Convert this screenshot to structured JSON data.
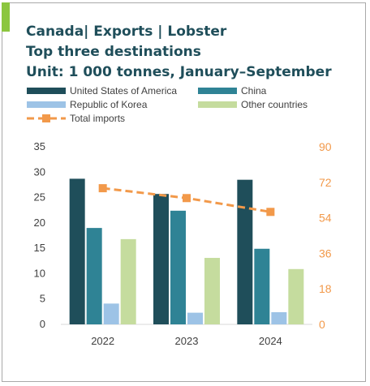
{
  "title": {
    "line1": "Canada| Exports | Lobster",
    "line2": "Top three destinations",
    "line3": "Unit: 1 000 tonnes, January–September"
  },
  "colors": {
    "usa": "#1f4e5a",
    "china": "#2f8395",
    "korea": "#9dc3e6",
    "other": "#c5dc9e",
    "total": "#f2994a",
    "accent": "#8cc63f",
    "title": "#1f4e5a"
  },
  "chart_data": {
    "type": "bar",
    "categories": [
      "2022",
      "2023",
      "2024"
    ],
    "series": [
      {
        "name": "United States of America",
        "values": [
          28.7,
          25.7,
          28.5
        ]
      },
      {
        "name": "China",
        "values": [
          19.0,
          22.4,
          14.9
        ]
      },
      {
        "name": "Republic of Korea",
        "values": [
          4.1,
          2.3,
          2.4
        ]
      },
      {
        "name": "Other countries",
        "values": [
          16.8,
          13.1,
          10.9
        ]
      }
    ],
    "line_series": {
      "name": "Total imports",
      "type": "line",
      "axis": "right",
      "values": [
        69,
        64,
        57
      ]
    },
    "y_left": {
      "ticks": [
        "35",
        "30",
        "25",
        "20",
        "15",
        "10",
        "5",
        "0"
      ],
      "ylim": [
        0,
        35
      ]
    },
    "y_right": {
      "ticks": [
        "90",
        "72",
        "54",
        "36",
        "18",
        "0"
      ],
      "ylim": [
        0,
        90
      ]
    },
    "legend_position": "top"
  }
}
